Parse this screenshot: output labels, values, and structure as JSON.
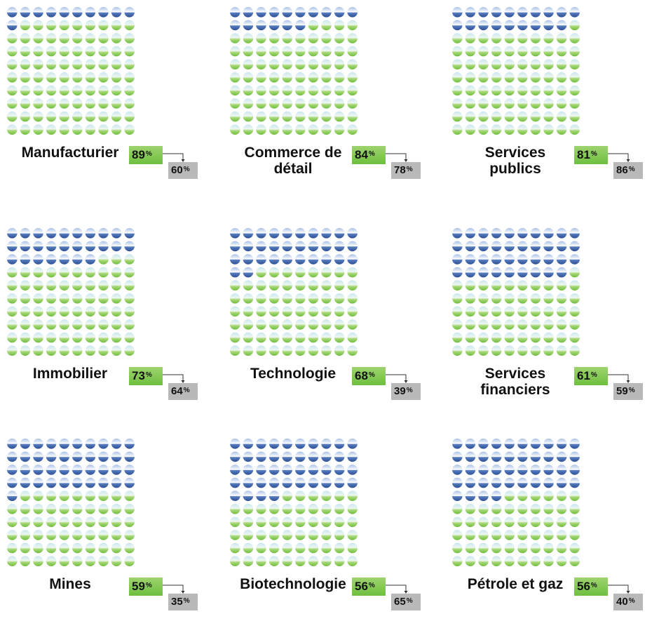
{
  "colors": {
    "highlight_dot": "#3a5fa8",
    "base_dot": "#7fc54d",
    "primary_badge": "#7cc64a",
    "secondary_badge": "#b9b9b9"
  },
  "chart_data": {
    "type": "waffle",
    "total_per_grid": 100,
    "items": [
      {
        "label": "Manufacturier",
        "primary": 89,
        "primary_text": "89",
        "secondary": 60,
        "secondary_text": "60",
        "unit": "%"
      },
      {
        "label": "Commerce de détail",
        "primary": 84,
        "primary_text": "84",
        "secondary": 78,
        "secondary_text": "78",
        "unit": "%"
      },
      {
        "label": "Services publics",
        "primary": 81,
        "primary_text": "81",
        "secondary": 86,
        "secondary_text": "86",
        "unit": "%"
      },
      {
        "label": "Immobilier",
        "primary": 73,
        "primary_text": "73",
        "secondary": 64,
        "secondary_text": "64",
        "unit": "%"
      },
      {
        "label": "Technologie",
        "primary": 68,
        "primary_text": "68",
        "secondary": 39,
        "secondary_text": "39",
        "unit": "%"
      },
      {
        "label": "Services financiers",
        "primary": 61,
        "primary_text": "61",
        "secondary": 59,
        "secondary_text": "59",
        "unit": "%"
      },
      {
        "label": "Mines",
        "primary": 59,
        "primary_text": "59",
        "secondary": 35,
        "secondary_text": "35",
        "unit": "%"
      },
      {
        "label": "Biotechnologie",
        "primary": 56,
        "primary_text": "56",
        "secondary": 65,
        "secondary_text": "65",
        "unit": "%"
      },
      {
        "label": "Pétrole et gaz",
        "primary": 56,
        "primary_text": "56",
        "secondary": 40,
        "secondary_text": "40",
        "unit": "%"
      }
    ]
  }
}
